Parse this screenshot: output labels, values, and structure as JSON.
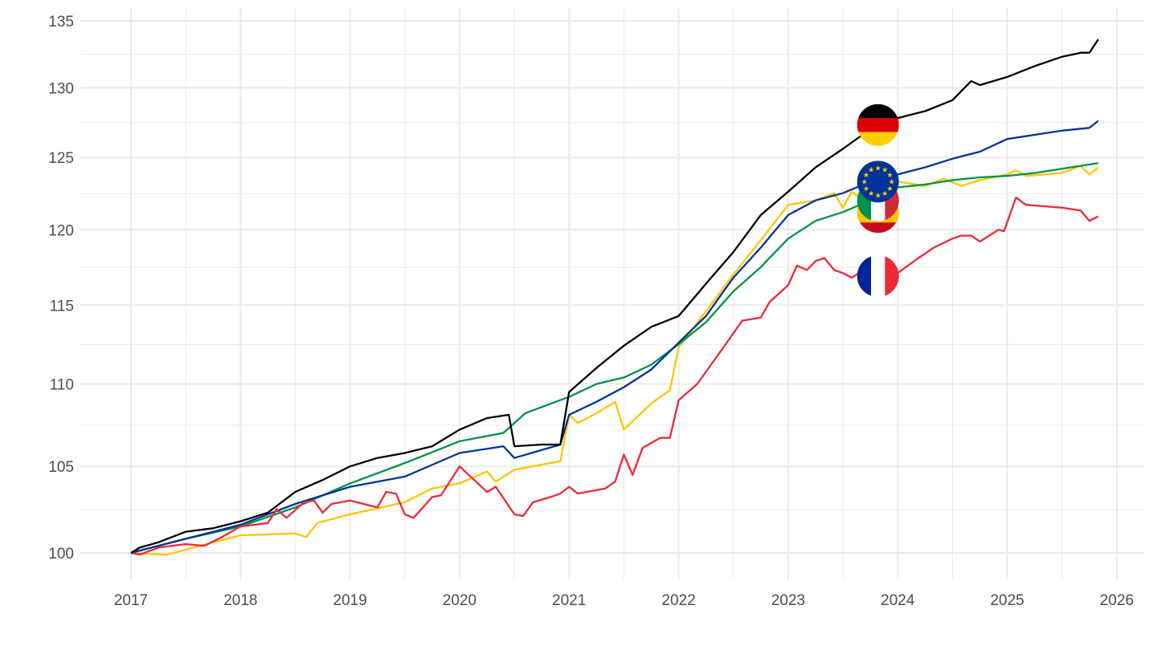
{
  "chart_data": {
    "type": "line",
    "title": "",
    "xlabel": "",
    "ylabel": "",
    "y_scale": "log",
    "xlim": [
      2016.55,
      2026.25
    ],
    "ylim": [
      99.0,
      136.0
    ],
    "x_ticks": [
      "2017",
      "2018",
      "2019",
      "2020",
      "2021",
      "2022",
      "2023",
      "2024",
      "2025",
      "2026"
    ],
    "x_tick_values": [
      2017,
      2018,
      2019,
      2020,
      2021,
      2022,
      2023,
      2024,
      2025,
      2026
    ],
    "y_ticks": [
      "100",
      "105",
      "110",
      "115",
      "120",
      "125",
      "130",
      "135"
    ],
    "y_tick_values": [
      100,
      105,
      110,
      115,
      120,
      125,
      130,
      135
    ],
    "grid": true,
    "legend": "flag icons placed on lines near 2023.8",
    "flag_x": 2023.82,
    "series": [
      {
        "name": "Germany",
        "color": "#000000",
        "flag": "germany-flag-icon",
        "flag_y": 127.3,
        "x": [
          2017,
          2017.08,
          2017.25,
          2017.5,
          2017.75,
          2018,
          2018.25,
          2018.5,
          2018.75,
          2019,
          2019.25,
          2019.5,
          2019.75,
          2020,
          2020.25,
          2020.45,
          2020.5,
          2020.75,
          2020.92,
          2021,
          2021.25,
          2021.5,
          2021.75,
          2022,
          2022.25,
          2022.5,
          2022.75,
          2023,
          2023.25,
          2023.5,
          2023.75,
          2024,
          2024.25,
          2024.5,
          2024.67,
          2024.75,
          2025,
          2025.25,
          2025.5,
          2025.67,
          2025.75,
          2025.83
        ],
        "y": [
          100,
          100.3,
          100.6,
          101.2,
          101.4,
          101.8,
          102.3,
          103.5,
          104.2,
          105.0,
          105.5,
          105.8,
          106.2,
          107.2,
          107.9,
          108.1,
          106.2,
          106.3,
          106.3,
          109.5,
          111.0,
          112.4,
          113.6,
          114.3,
          116.4,
          118.5,
          121.0,
          122.6,
          124.3,
          125.6,
          127.0,
          127.8,
          128.3,
          129.1,
          130.5,
          130.2,
          130.8,
          131.6,
          132.3,
          132.6,
          132.6,
          133.6
        ]
      },
      {
        "name": "Euro area",
        "color": "#003399",
        "flag": "eu-flag-icon",
        "flag_y": 123.3,
        "x": [
          2017,
          2017.5,
          2018,
          2018.5,
          2019,
          2019.5,
          2020,
          2020.4,
          2020.5,
          2020.92,
          2021,
          2021.25,
          2021.5,
          2021.75,
          2022,
          2022.25,
          2022.5,
          2022.75,
          2023,
          2023.25,
          2023.5,
          2023.75,
          2024,
          2024.25,
          2024.5,
          2024.75,
          2025,
          2025.25,
          2025.5,
          2025.75,
          2025.83
        ],
        "y": [
          100,
          100.8,
          101.6,
          102.8,
          103.8,
          104.4,
          105.8,
          106.2,
          105.5,
          106.3,
          108.1,
          108.9,
          109.8,
          110.9,
          112.6,
          114.3,
          116.8,
          118.8,
          121.0,
          122.0,
          122.5,
          123.3,
          123.8,
          124.3,
          124.9,
          125.4,
          126.3,
          126.6,
          126.9,
          127.1,
          127.6
        ]
      },
      {
        "name": "Italy",
        "color": "#009246",
        "flag": "italy-flag-icon",
        "flag_y": 122.0,
        "x": [
          2017,
          2017.5,
          2018,
          2018.5,
          2019,
          2019.5,
          2020,
          2020.4,
          2020.6,
          2020.92,
          2021,
          2021.25,
          2021.5,
          2021.75,
          2022,
          2022.25,
          2022.5,
          2022.75,
          2023,
          2023.25,
          2023.5,
          2023.75,
          2024,
          2024.25,
          2024.5,
          2024.75,
          2025,
          2025.25,
          2025.5,
          2025.83
        ],
        "y": [
          100,
          100.8,
          101.5,
          102.6,
          104.0,
          105.2,
          106.5,
          107.0,
          108.2,
          109.0,
          109.2,
          110.0,
          110.4,
          111.2,
          112.5,
          113.9,
          115.9,
          117.5,
          119.4,
          120.6,
          121.2,
          122.0,
          122.9,
          123.1,
          123.4,
          123.6,
          123.7,
          123.9,
          124.2,
          124.6
        ]
      },
      {
        "name": "Spain",
        "color": "#FFC400",
        "flag": "spain-flag-icon",
        "flag_y": 121.2,
        "x": [
          2017,
          2017.33,
          2017.75,
          2018,
          2018.5,
          2018.6,
          2018.7,
          2019,
          2019.5,
          2019.75,
          2020,
          2020.25,
          2020.33,
          2020.5,
          2020.83,
          2020.92,
          2021,
          2021.08,
          2021.25,
          2021.42,
          2021.5,
          2021.75,
          2021.92,
          2022,
          2022.25,
          2022.5,
          2022.75,
          2023,
          2023.25,
          2023.42,
          2023.5,
          2023.58,
          2023.75,
          2024,
          2024.25,
          2024.42,
          2024.58,
          2024.75,
          2025,
          2025.08,
          2025.17,
          2025.5,
          2025.67,
          2025.75,
          2025.83
        ],
        "y": [
          100,
          99.9,
          100.6,
          101.0,
          101.1,
          100.9,
          101.7,
          102.2,
          102.9,
          103.7,
          104.0,
          104.7,
          104.1,
          104.8,
          105.2,
          105.3,
          108.1,
          107.6,
          108.2,
          108.9,
          107.2,
          108.8,
          109.6,
          112.3,
          114.6,
          117.0,
          119.3,
          121.7,
          122.0,
          122.5,
          121.5,
          122.6,
          121.6,
          123.3,
          123.0,
          123.5,
          123.0,
          123.4,
          123.8,
          124.1,
          123.7,
          123.9,
          124.4,
          123.8,
          124.3
        ]
      },
      {
        "name": "France",
        "color": "#ED2939",
        "flag": "france-flag-icon",
        "flag_y": 116.9,
        "x": [
          2017,
          2017.08,
          2017.25,
          2017.5,
          2017.67,
          2017.83,
          2018,
          2018.25,
          2018.33,
          2018.42,
          2018.58,
          2018.67,
          2018.75,
          2018.83,
          2019,
          2019.25,
          2019.33,
          2019.42,
          2019.5,
          2019.58,
          2019.75,
          2019.83,
          2020,
          2020.25,
          2020.33,
          2020.5,
          2020.58,
          2020.67,
          2020.83,
          2020.92,
          2021,
          2021.08,
          2021.33,
          2021.42,
          2021.5,
          2021.58,
          2021.67,
          2021.83,
          2021.92,
          2022,
          2022.17,
          2022.42,
          2022.58,
          2022.75,
          2022.83,
          2023,
          2023.08,
          2023.17,
          2023.25,
          2023.33,
          2023.42,
          2023.5,
          2023.58,
          2023.67,
          2023.83,
          2024,
          2024.17,
          2024.33,
          2024.5,
          2024.58,
          2024.67,
          2024.75,
          2024.92,
          2024.97,
          2025.08,
          2025.17,
          2025.33,
          2025.5,
          2025.67,
          2025.75,
          2025.83
        ],
        "y": [
          100,
          99.9,
          100.3,
          100.5,
          100.4,
          100.9,
          101.5,
          101.7,
          102.5,
          102.0,
          102.9,
          103.0,
          102.3,
          102.8,
          103.0,
          102.6,
          103.5,
          103.4,
          102.2,
          102.0,
          103.2,
          103.3,
          105.0,
          103.5,
          103.8,
          102.2,
          102.1,
          102.9,
          103.2,
          103.4,
          103.8,
          103.4,
          103.7,
          104.1,
          105.7,
          104.5,
          106.1,
          106.7,
          106.7,
          109.0,
          110.0,
          112.4,
          114.0,
          114.2,
          115.2,
          116.3,
          117.6,
          117.3,
          117.9,
          118.1,
          117.3,
          117.1,
          116.8,
          117.2,
          117.2,
          117.1,
          118.0,
          118.8,
          119.4,
          119.6,
          119.6,
          119.2,
          120.0,
          119.9,
          122.2,
          121.7,
          121.6,
          121.5,
          121.3,
          120.6,
          120.9
        ]
      }
    ]
  }
}
